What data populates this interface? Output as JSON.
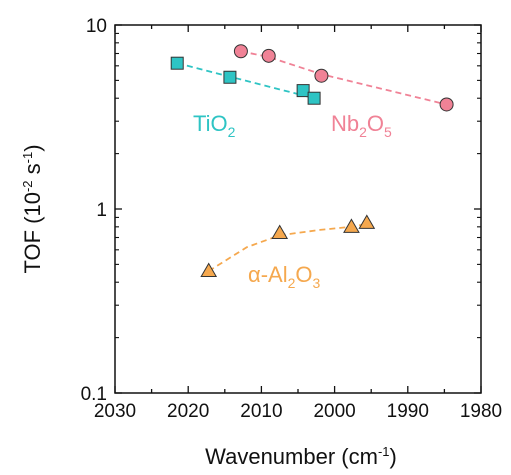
{
  "chart_data": {
    "type": "scatter",
    "xlabel": {
      "main": "Wavenumber (cm",
      "sup": "-1",
      "close": ")"
    },
    "ylabel": {
      "main": "TOF (10",
      "sup": "-2",
      "mid": " s",
      "sup2": "-1",
      "close": ")"
    },
    "xlim": [
      2030,
      1980
    ],
    "ylim": [
      0.1,
      10
    ],
    "yscale": "log",
    "x_ticks": [
      2030,
      2020,
      2010,
      2000,
      1990,
      1980
    ],
    "y_ticks": [
      {
        "value": 0.1,
        "label": "0.1"
      },
      {
        "value": 1,
        "label": "1"
      },
      {
        "value": 10,
        "label": "10"
      }
    ],
    "grid": false,
    "series": [
      {
        "name": "TiO2",
        "label_parts": [
          {
            "t": "TiO"
          },
          {
            "t": "2",
            "sub": true
          }
        ],
        "marker": "square",
        "color": "#2ec4c4",
        "points": [
          [
            2021.5,
            6.2
          ],
          [
            2014.3,
            5.2
          ],
          [
            2004.3,
            4.4
          ],
          [
            2002.8,
            4.0
          ]
        ],
        "trend": [
          [
            2021.5,
            6.2
          ],
          [
            2002.8,
            4.0
          ]
        ]
      },
      {
        "name": "Nb2O5",
        "label_parts": [
          {
            "t": "Nb"
          },
          {
            "t": "2",
            "sub": true
          },
          {
            "t": "O"
          },
          {
            "t": "5",
            "sub": true
          }
        ],
        "marker": "circle",
        "color": "#f08296",
        "points": [
          [
            2012.8,
            7.2
          ],
          [
            2009.0,
            6.8
          ],
          [
            2001.8,
            5.3
          ],
          [
            1984.7,
            3.7
          ]
        ],
        "trend": [
          [
            2012.8,
            7.2
          ],
          [
            2009.0,
            6.7
          ],
          [
            2001.8,
            5.4
          ],
          [
            1984.7,
            3.7
          ]
        ]
      },
      {
        "name": "α-Al2O3",
        "label_parts": [
          {
            "t": "α-Al"
          },
          {
            "t": "2",
            "sub": true
          },
          {
            "t": "O"
          },
          {
            "t": "3",
            "sub": true
          }
        ],
        "marker": "triangle",
        "color": "#f5a84e",
        "points": [
          [
            2017.2,
            0.46
          ],
          [
            2007.5,
            0.74
          ],
          [
            1997.7,
            0.8
          ],
          [
            1995.6,
            0.84
          ]
        ],
        "trend": [
          [
            2017.2,
            0.46
          ],
          [
            2012.0,
            0.62
          ],
          [
            2007.5,
            0.72
          ],
          [
            2002.0,
            0.77
          ],
          [
            1997.7,
            0.8
          ],
          [
            1995.6,
            0.83
          ]
        ]
      }
    ]
  }
}
